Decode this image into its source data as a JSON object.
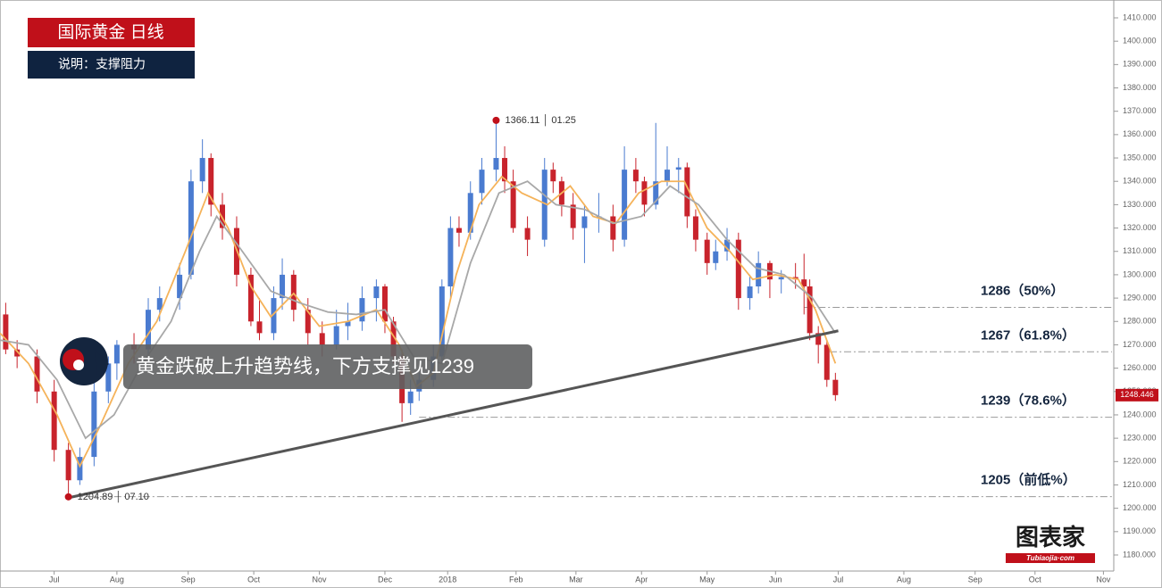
{
  "chart_data": {
    "type": "candlestick",
    "title": "国际黄金 日线",
    "subtitle": "说明：支撑阻力",
    "annotation": "黄金跌破上升趋势线，下方支撑见1239",
    "logo": {
      "text": "图表家",
      "sub": "Tubiaojia·com"
    },
    "up_color": "#4a7bd0",
    "down_color": "#c8232c",
    "x": [
      2,
      6,
      13,
      19,
      24,
      28,
      33,
      38,
      41,
      47,
      52,
      56,
      63,
      67,
      71,
      74,
      78,
      83,
      88,
      91,
      96,
      99,
      103,
      108,
      113,
      118,
      122,
      127,
      132,
      135,
      138,
      141,
      144,
      147,
      152,
      155,
      158,
      161,
      165,
      169,
      174,
      177,
      180,
      185,
      191,
      194,
      197,
      201,
      205,
      210,
      215,
      219,
      223,
      226,
      230,
      234,
      238,
      241,
      244,
      248,
      251,
      255,
      259,
      263,
      266,
      270,
      274,
      279,
      282,
      284,
      287,
      290,
      293
    ],
    "open": [
      1283,
      1268,
      1265,
      1250,
      1225,
      1212,
      1222,
      1250,
      1262,
      1270,
      1268,
      1285,
      1290,
      1300,
      1340,
      1350,
      1330,
      1320,
      1300,
      1280,
      1275,
      1290,
      1300,
      1285,
      1275,
      1270,
      1278,
      1280,
      1290,
      1295,
      1280,
      1265,
      1245,
      1250,
      1255,
      1265,
      1295,
      1320,
      1318,
      1335,
      1345,
      1350,
      1340,
      1320,
      1315,
      1345,
      1340,
      1330,
      1320,
      1325,
      1325,
      1315,
      1345,
      1340,
      1330,
      1340,
      1345,
      1346,
      1325,
      1315,
      1305,
      1310,
      1315,
      1290,
      1295,
      1305,
      1298,
      1299,
      1298,
      1295,
      1275,
      1270,
      1255
    ],
    "high": [
      1288,
      1272,
      1268,
      1255,
      1228,
      1226,
      1255,
      1265,
      1272,
      1275,
      1290,
      1295,
      1305,
      1345,
      1358,
      1352,
      1335,
      1325,
      1303,
      1290,
      1295,
      1307,
      1302,
      1290,
      1280,
      1285,
      1288,
      1295,
      1298,
      1296,
      1282,
      1268,
      1255,
      1258,
      1270,
      1298,
      1325,
      1325,
      1340,
      1350,
      1366.11,
      1355,
      1345,
      1325,
      1350,
      1348,
      1342,
      1335,
      1330,
      1335,
      1330,
      1355,
      1350,
      1342,
      1365,
      1355,
      1350,
      1348,
      1328,
      1318,
      1315,
      1320,
      1318,
      1300,
      1310,
      1306,
      1302,
      1305,
      1309,
      1298,
      1278,
      1272,
      1258
    ],
    "low": [
      1266,
      1260,
      1245,
      1220,
      1204.89,
      1210,
      1218,
      1245,
      1255,
      1262,
      1265,
      1280,
      1285,
      1298,
      1335,
      1325,
      1315,
      1295,
      1278,
      1272,
      1272,
      1285,
      1280,
      1270,
      1265,
      1268,
      1272,
      1276,
      1280,
      1275,
      1262,
      1237,
      1240,
      1246,
      1252,
      1262,
      1290,
      1312,
      1315,
      1330,
      1340,
      1335,
      1318,
      1308,
      1312,
      1335,
      1325,
      1315,
      1305,
      1318,
      1310,
      1312,
      1335,
      1325,
      1328,
      1338,
      1335,
      1320,
      1310,
      1300,
      1302,
      1306,
      1285,
      1285,
      1292,
      1290,
      1292,
      1294,
      1283,
      1272,
      1262,
      1252,
      1246
    ],
    "close": [
      1268,
      1265,
      1250,
      1225,
      1212,
      1222,
      1250,
      1262,
      1270,
      1268,
      1285,
      1290,
      1300,
      1340,
      1350,
      1330,
      1320,
      1300,
      1280,
      1275,
      1290,
      1300,
      1285,
      1275,
      1270,
      1278,
      1280,
      1290,
      1295,
      1280,
      1265,
      1245,
      1250,
      1255,
      1265,
      1295,
      1320,
      1318,
      1335,
      1345,
      1350,
      1340,
      1320,
      1315,
      1345,
      1340,
      1330,
      1320,
      1325,
      1325,
      1315,
      1345,
      1340,
      1330,
      1340,
      1345,
      1346,
      1325,
      1315,
      1305,
      1310,
      1315,
      1290,
      1295,
      1305,
      1298,
      1299,
      1298,
      1295,
      1275,
      1270,
      1255,
      1248.446
    ],
    "ma": [
      {
        "color": "#f5b35a",
        "x": [
          0,
          10,
          20,
          28,
          35,
          45,
          55,
          65,
          73,
          80,
          88,
          95,
          103,
          112,
          122,
          132,
          140,
          146,
          152,
          160,
          168,
          176,
          183,
          192,
          200,
          208,
          216,
          224,
          232,
          240,
          248,
          256,
          264,
          272,
          280,
          286,
          293
        ],
        "values": [
          1275,
          1262,
          1240,
          1218,
          1235,
          1262,
          1280,
          1310,
          1335,
          1320,
          1295,
          1282,
          1292,
          1278,
          1280,
          1285,
          1270,
          1252,
          1258,
          1300,
          1330,
          1342,
          1335,
          1330,
          1338,
          1325,
          1322,
          1335,
          1340,
          1340,
          1320,
          1310,
          1298,
          1300,
          1298,
          1285,
          1262
        ]
      },
      {
        "color": "#a8a8a8",
        "x": [
          0,
          10,
          20,
          30,
          40,
          50,
          60,
          70,
          76,
          85,
          95,
          105,
          115,
          125,
          135,
          145,
          155,
          165,
          175,
          185,
          195,
          205,
          215,
          225,
          235,
          245,
          255,
          265,
          275,
          285,
          293
        ],
        "values": [
          1272,
          1270,
          1255,
          1230,
          1240,
          1262,
          1280,
          1310,
          1325,
          1310,
          1293,
          1288,
          1284,
          1283,
          1285,
          1265,
          1262,
          1305,
          1335,
          1340,
          1330,
          1328,
          1322,
          1325,
          1338,
          1330,
          1315,
          1303,
          1300,
          1290,
          1275
        ]
      }
    ],
    "trendline": {
      "x": [
        24,
        294
      ],
      "values": [
        1204.5,
        1276
      ]
    },
    "levels": [
      {
        "value": 1286,
        "from": 282,
        "label": "1286（50%）"
      },
      {
        "value": 1267,
        "from": 291,
        "label": "1267（61.8%）"
      },
      {
        "value": 1239,
        "from": 147,
        "label": "1239（78.6%）"
      },
      {
        "value": 1205,
        "from": 25,
        "label": "1205（前低%）"
      }
    ],
    "extremes": [
      {
        "x": 174,
        "value": 1366.11,
        "label": "1366.11 │ 01.25"
      },
      {
        "x": 24,
        "value": 1204.89,
        "label": "1204.89 │ 07.10"
      }
    ],
    "last_price": {
      "value": 1248.446,
      "label": "1248.446"
    },
    "xlim": [
      0,
      390
    ],
    "xticks": [
      {
        "value": 19,
        "label": "Jul"
      },
      {
        "value": 41,
        "label": "Aug"
      },
      {
        "value": 66,
        "label": "Sep"
      },
      {
        "value": 89,
        "label": "Oct"
      },
      {
        "value": 112,
        "label": "Nov"
      },
      {
        "value": 135,
        "label": "Dec"
      },
      {
        "value": 157,
        "label": "2018"
      },
      {
        "value": 181,
        "label": "Feb"
      },
      {
        "value": 202,
        "label": "Mar"
      },
      {
        "value": 225,
        "label": "Apr"
      },
      {
        "value": 248,
        "label": "May"
      },
      {
        "value": 272,
        "label": "Jun"
      },
      {
        "value": 294,
        "label": "Jul"
      },
      {
        "value": 317,
        "label": "Aug"
      },
      {
        "value": 342,
        "label": "Sep"
      },
      {
        "value": 363,
        "label": "Oct"
      },
      {
        "value": 387,
        "label": "Nov"
      }
    ],
    "ylim": [
      1180,
      1410
    ],
    "yticks": [
      {
        "value": 1180,
        "label": "1180.000"
      },
      {
        "value": 1190,
        "label": "1190.000"
      },
      {
        "value": 1200,
        "label": "1200.000"
      },
      {
        "value": 1210,
        "label": "1210.000"
      },
      {
        "value": 1220,
        "label": "1220.000"
      },
      {
        "value": 1230,
        "label": "1230.000"
      },
      {
        "value": 1240,
        "label": "1240.000"
      },
      {
        "value": 1250,
        "label": "1250.000"
      },
      {
        "value": 1260,
        "label": "1260.000"
      },
      {
        "value": 1270,
        "label": "1270.000"
      },
      {
        "value": 1280,
        "label": "1280.000"
      },
      {
        "value": 1290,
        "label": "1290.000"
      },
      {
        "value": 1300,
        "label": "1300.000"
      },
      {
        "value": 1310,
        "label": "1310.000"
      },
      {
        "value": 1320,
        "label": "1320.000"
      },
      {
        "value": 1330,
        "label": "1330.000"
      },
      {
        "value": 1340,
        "label": "1340.000"
      },
      {
        "value": 1350,
        "label": "1350.000"
      },
      {
        "value": 1360,
        "label": "1360.000"
      },
      {
        "value": 1370,
        "label": "1370.000"
      },
      {
        "value": 1380,
        "label": "1380.000"
      },
      {
        "value": 1390,
        "label": "1390.000"
      },
      {
        "value": 1400,
        "label": "1400.000"
      },
      {
        "value": 1410,
        "label": "1410.000"
      }
    ]
  }
}
